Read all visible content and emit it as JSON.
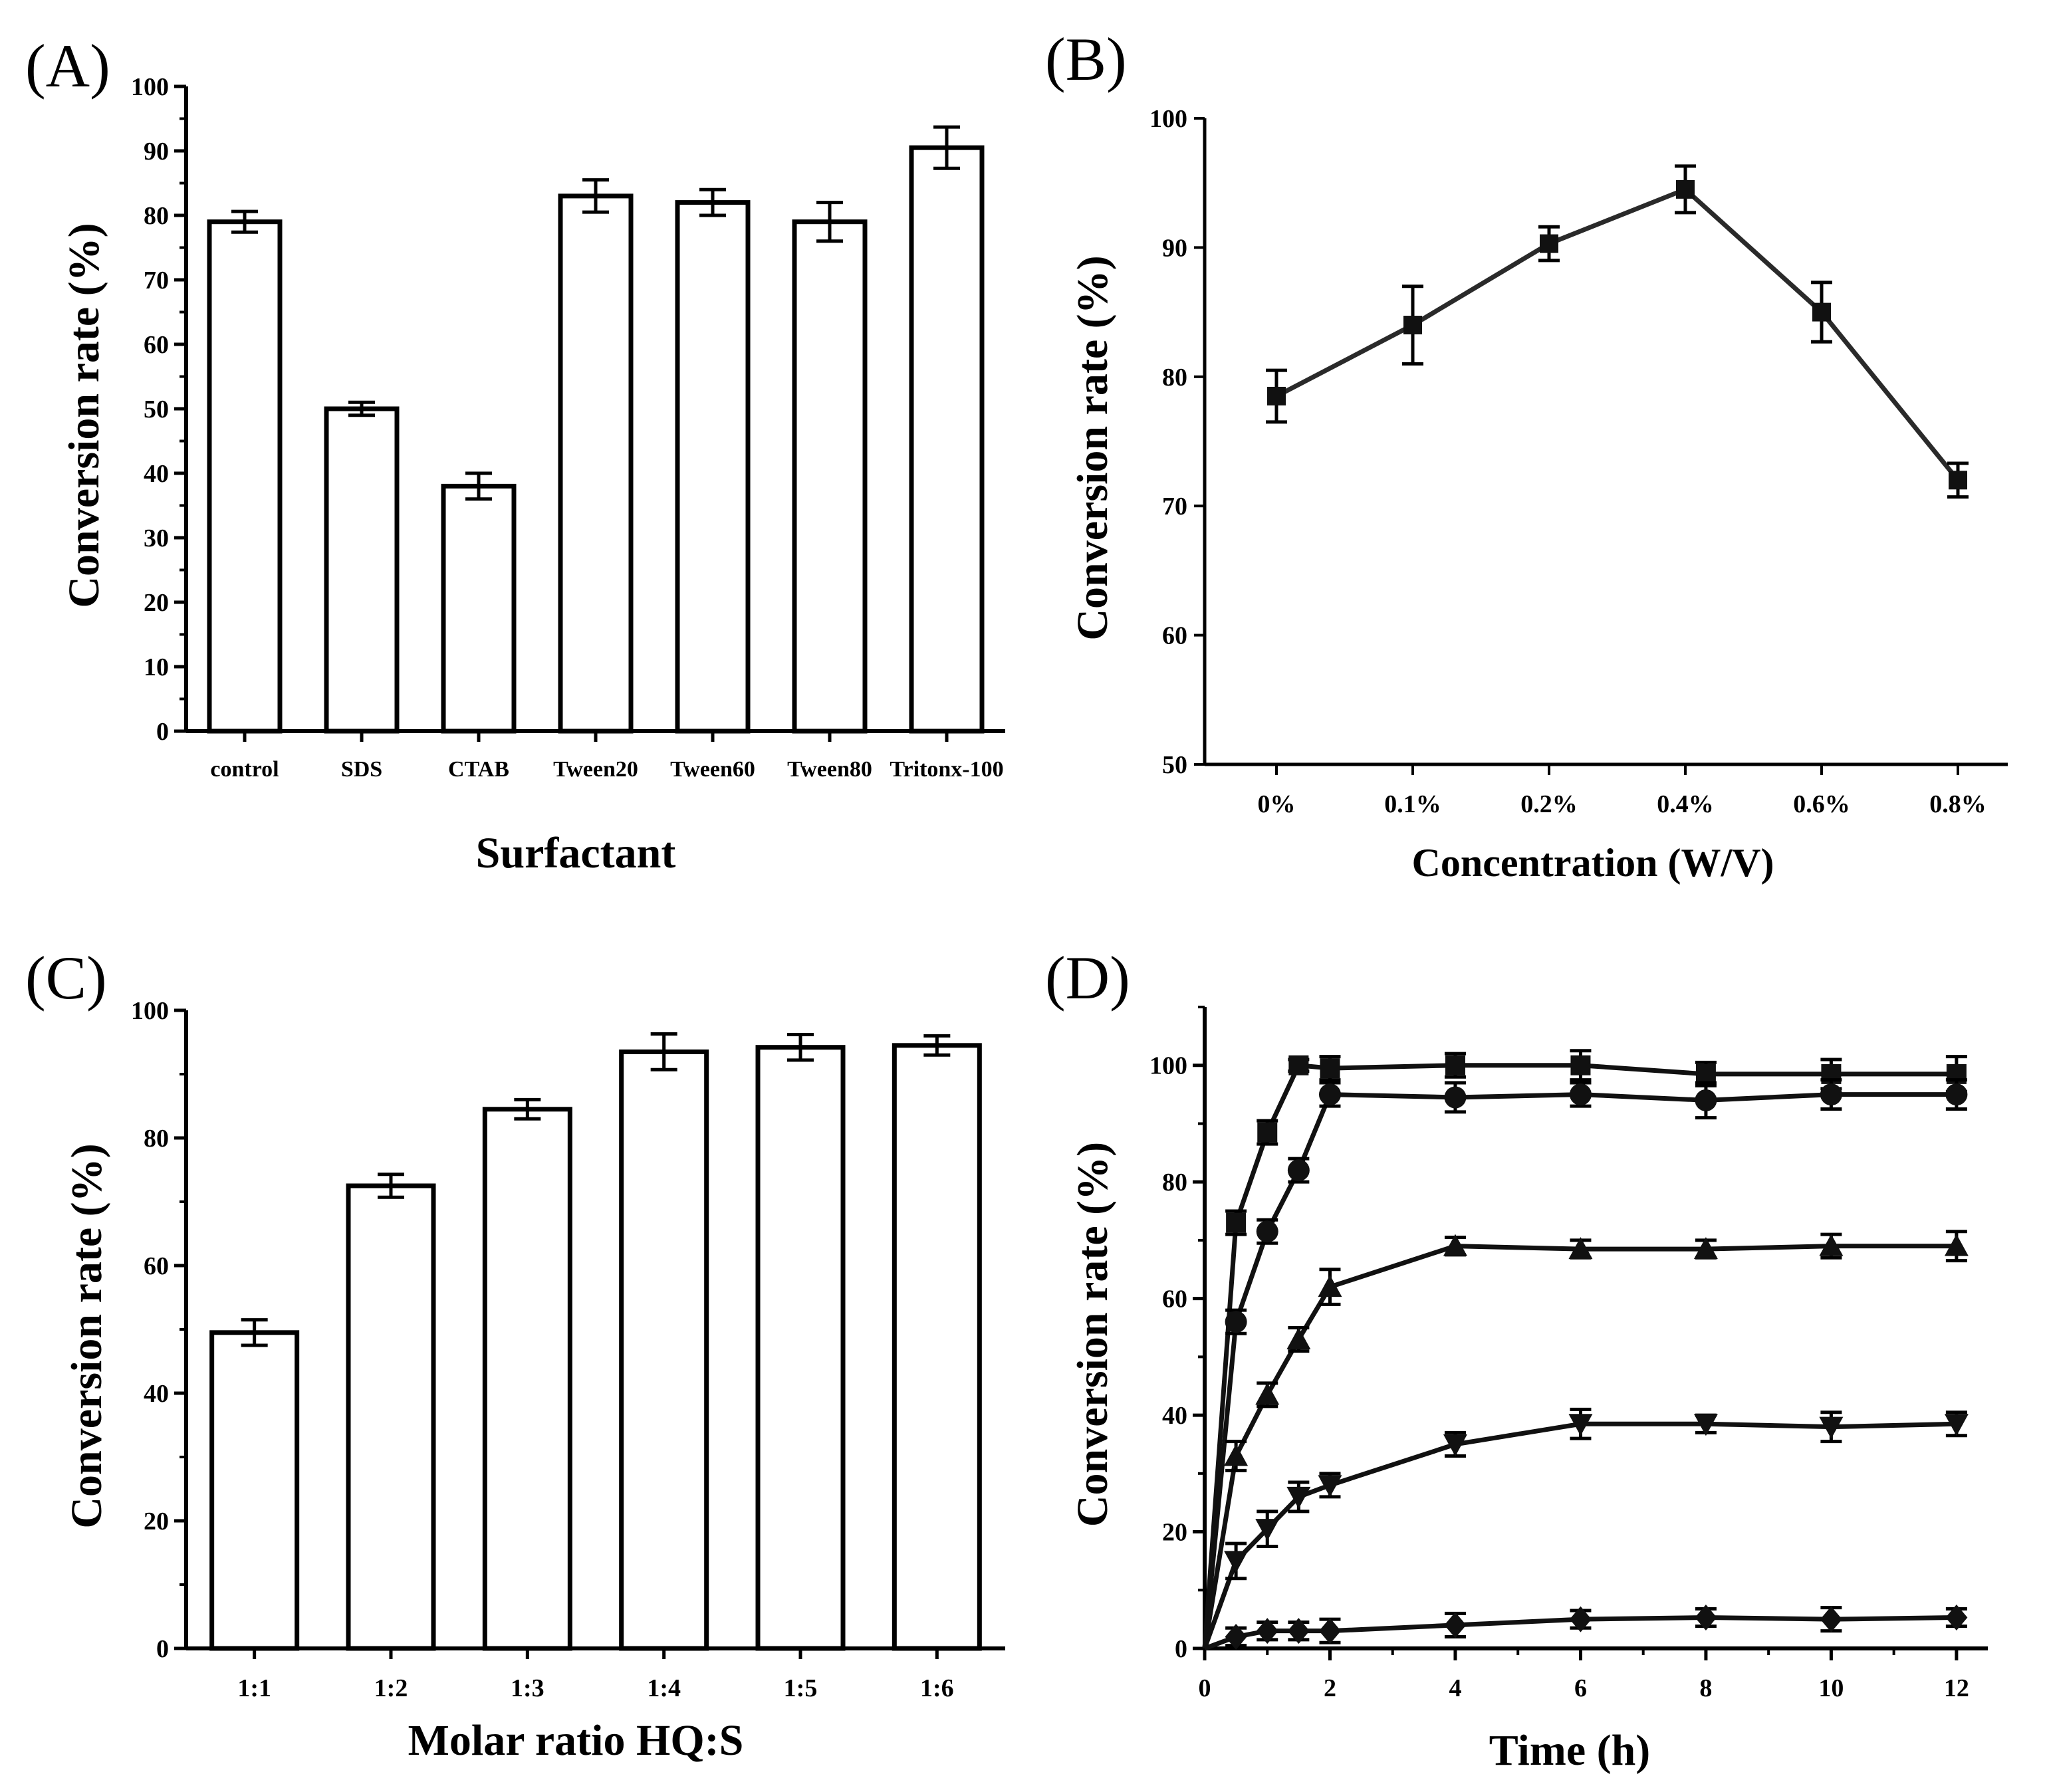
{
  "chart_data": [
    {
      "panel": "(A)",
      "type": "bar",
      "categories": [
        "control",
        "SDS",
        "CTAB",
        "Tween20",
        "Tween60",
        "Tween80",
        "Tritonx-100"
      ],
      "values": [
        79,
        50,
        38,
        83,
        82,
        79,
        90.5
      ],
      "errors": [
        1.6,
        1.0,
        2.0,
        2.5,
        2.0,
        3.0,
        3.2
      ],
      "xlabel": "Surfactant",
      "ylabel": "Conversion rate (%)",
      "ylim": [
        0,
        100
      ],
      "yticks": [
        "0",
        "10",
        "20",
        "30",
        "40",
        "50",
        "60",
        "70",
        "80",
        "90",
        "100"
      ]
    },
    {
      "panel": "(B)",
      "type": "line",
      "categories": [
        "0%",
        "0.1%",
        "0.2%",
        "0.4%",
        "0.6%",
        "0.8%"
      ],
      "values": [
        78.5,
        84,
        90.3,
        94.5,
        85,
        72
      ],
      "errors": [
        2.0,
        3.0,
        1.3,
        1.8,
        2.3,
        1.3
      ],
      "xlabel": "Concentration (W/V)",
      "ylabel": "Conversion rate  (%)",
      "ylim": [
        50,
        100
      ],
      "yticks": [
        "50",
        "60",
        "70",
        "80",
        "90",
        "100"
      ]
    },
    {
      "panel": "(C)",
      "type": "bar",
      "categories": [
        "1:1",
        "1:2",
        "1:3",
        "1:4",
        "1:5",
        "1:6"
      ],
      "values": [
        49.5,
        72.5,
        84.5,
        93.5,
        94.2,
        94.5
      ],
      "errors": [
        2.0,
        1.8,
        1.5,
        2.8,
        2.0,
        1.5
      ],
      "xlabel": "Molar ratio HQ:S",
      "ylabel": "Conversion rate (%)",
      "ylim": [
        0,
        100
      ],
      "yticks": [
        "0",
        "20",
        "40",
        "60",
        "80",
        "100"
      ]
    },
    {
      "panel": "(D)",
      "type": "line",
      "xlabel": "Time (h)",
      "ylabel": "Conversion rate (%)",
      "xlim": [
        0,
        12.5
      ],
      "ylim": [
        0,
        110
      ],
      "xticks": [
        "0",
        "2",
        "4",
        "6",
        "8",
        "10",
        "12"
      ],
      "yticks": [
        "0",
        "20",
        "40",
        "60",
        "80",
        "100"
      ],
      "x": [
        0,
        0.5,
        1,
        1.5,
        2,
        4,
        6,
        8,
        10,
        12
      ],
      "series": [
        {
          "name": "square",
          "marker": "square",
          "values": [
            0,
            73,
            88.5,
            100,
            99.5,
            100,
            100,
            98.5,
            98.5,
            98.5
          ],
          "errors": [
            0,
            2,
            2,
            1,
            2,
            2,
            2.5,
            2,
            2.5,
            3
          ]
        },
        {
          "name": "circle",
          "marker": "circle",
          "values": [
            0,
            56,
            71.5,
            82,
            95,
            94.5,
            95,
            94,
            95,
            95
          ],
          "errors": [
            0,
            2,
            2,
            2,
            2,
            2.5,
            2,
            3,
            2.5,
            2.5
          ]
        },
        {
          "name": "triangle-up",
          "marker": "triangle-up",
          "values": [
            0,
            33,
            43.5,
            53,
            62,
            69,
            68.5,
            68.5,
            69,
            69
          ],
          "errors": [
            0,
            2.5,
            2,
            2,
            3,
            1.5,
            1.5,
            1.5,
            2,
            2.5
          ]
        },
        {
          "name": "triangle-down",
          "marker": "triangle-down",
          "values": [
            0,
            15,
            20.5,
            26,
            28,
            35,
            38.5,
            38.5,
            38,
            38.5
          ],
          "errors": [
            0,
            3,
            3,
            2.5,
            2,
            2,
            2.5,
            1.5,
            2.5,
            2
          ]
        },
        {
          "name": "diamond",
          "marker": "diamond",
          "values": [
            0,
            2,
            3,
            3,
            3,
            4,
            5,
            5.3,
            5,
            5.3
          ],
          "errors": [
            0,
            1.5,
            1.5,
            1.5,
            2,
            2,
            1.5,
            1.5,
            2,
            1.5
          ]
        }
      ]
    }
  ]
}
